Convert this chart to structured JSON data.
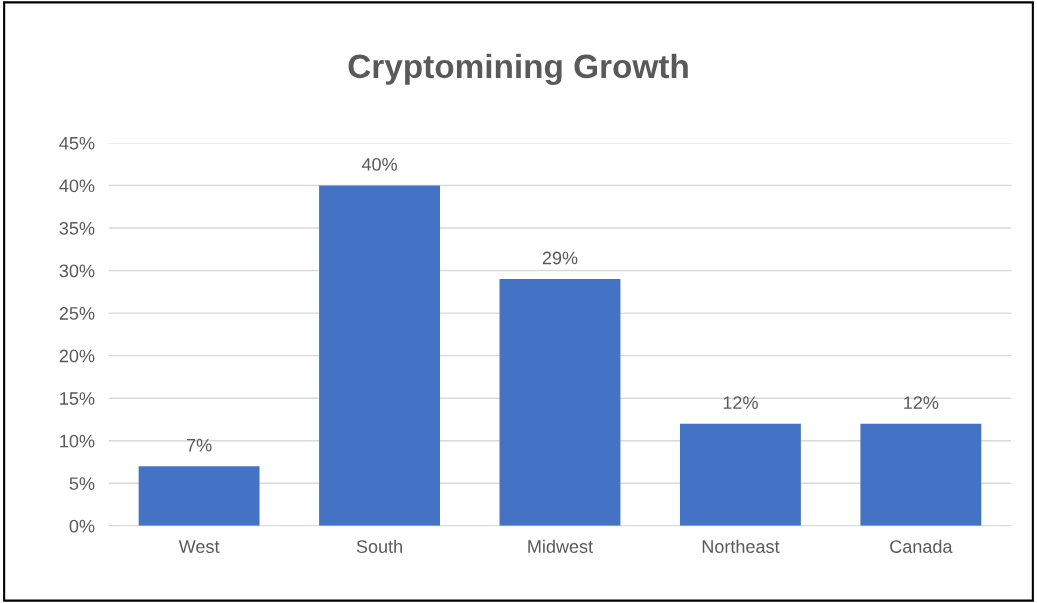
{
  "chart_data": {
    "type": "bar",
    "title": "Cryptomining Growth",
    "categories": [
      "West",
      "South",
      "Midwest",
      "Northeast",
      "Canada"
    ],
    "values": [
      7,
      40,
      29,
      12,
      12
    ],
    "value_labels": [
      "7%",
      "40%",
      "29%",
      "12%",
      "12%"
    ],
    "color": "#4472c4",
    "ylim": [
      0,
      45
    ],
    "yticks": [
      {
        "value": 0,
        "label": "0%"
      },
      {
        "value": 5,
        "label": "5%"
      },
      {
        "value": 10,
        "label": "10%"
      },
      {
        "value": 15,
        "label": "15%"
      },
      {
        "value": 20,
        "label": "20%"
      },
      {
        "value": 25,
        "label": "25%"
      },
      {
        "value": 30,
        "label": "30%"
      },
      {
        "value": 35,
        "label": "35%"
      },
      {
        "value": 40,
        "label": "40%"
      },
      {
        "value": 45,
        "label": "45%"
      }
    ],
    "grid": "y",
    "legend": false
  }
}
